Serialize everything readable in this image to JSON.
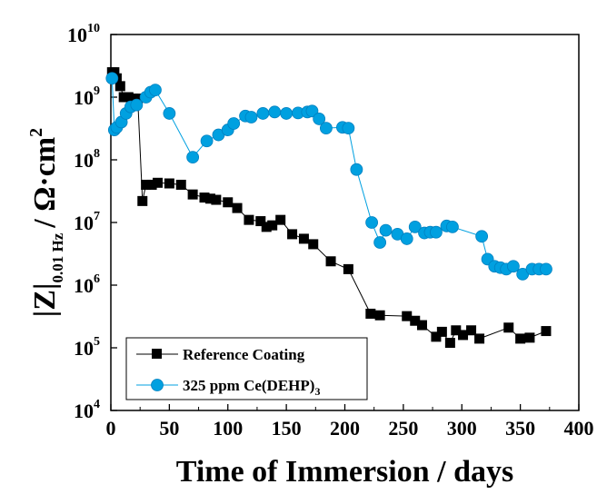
{
  "chart_data": {
    "type": "scatter",
    "xlabel": "Time of Immersion / days",
    "ylabel_main": "|Z|",
    "ylabel_sub": "0.01 Hz",
    "ylabel_unit": "/ Ω·cm",
    "ylabel_unit_sup": "2",
    "xlim": [
      0,
      400
    ],
    "ylim": [
      10000,
      10000000000
    ],
    "yscale": "log",
    "x_ticks": [
      0,
      50,
      100,
      150,
      200,
      250,
      300,
      350,
      400
    ],
    "x_tick_labels": [
      "0",
      "50",
      "100",
      "150",
      "200",
      "250",
      "300",
      "350",
      "400"
    ],
    "y_tick_exponents": [
      4,
      5,
      6,
      7,
      8,
      9,
      10
    ],
    "y_tick_labels": [
      "10",
      "10",
      "10",
      "10",
      "10",
      "10",
      "10"
    ],
    "y_tick_sups": [
      "4",
      "5",
      "6",
      "7",
      "8",
      "9",
      "10"
    ],
    "legend_position": "bottom-left",
    "series": [
      {
        "name": "Reference Coating",
        "name_sub": "",
        "color": "#000000",
        "marker": "square",
        "x": [
          1,
          3,
          5,
          8,
          11,
          15,
          19,
          23,
          27,
          30,
          35,
          40,
          50,
          60,
          70,
          80,
          85,
          90,
          100,
          108,
          118,
          128,
          133,
          138,
          145,
          155,
          165,
          173,
          188,
          203,
          222,
          230,
          253,
          260,
          266,
          278,
          283,
          290,
          295,
          301,
          308,
          315,
          340,
          350,
          358,
          372
        ],
        "y": [
          2500000000,
          2500000000,
          2000000000,
          1500000000,
          1000000000,
          1000000000,
          950000000,
          950000000,
          22000000,
          40000000,
          40000000,
          43000000,
          42000000,
          40000000,
          28000000,
          25000000,
          24000000,
          23000000,
          21000000,
          17000000,
          11000000,
          10500000,
          8500000,
          9000000,
          11000000,
          6500000,
          5500000,
          4500000,
          2400000,
          1800000,
          350000,
          330000,
          320000,
          270000,
          230000,
          150000,
          180000,
          120000,
          190000,
          160000,
          190000,
          140000,
          210000,
          140000,
          145000,
          185000
        ]
      },
      {
        "name": "325 ppm Ce(DEHP)",
        "name_sub": "3",
        "color": "#00a0e0",
        "marker": "circle",
        "x": [
          1,
          3,
          5,
          9,
          13,
          17,
          22,
          30,
          34,
          38,
          50,
          70,
          82,
          92,
          100,
          105,
          115,
          120,
          130,
          140,
          150,
          160,
          168,
          172,
          178,
          184,
          198,
          203,
          210,
          223,
          230,
          235,
          245,
          253,
          260,
          268,
          273,
          278,
          287,
          292,
          317,
          322,
          328,
          333,
          338,
          344,
          352,
          360,
          366,
          372
        ],
        "y": [
          2000000000,
          300000000,
          330000000,
          400000000,
          550000000,
          700000000,
          750000000,
          1000000000,
          1200000000,
          1300000000,
          550000000,
          110000000,
          200000000,
          250000000,
          300000000,
          380000000,
          500000000,
          480000000,
          550000000,
          580000000,
          550000000,
          560000000,
          580000000,
          600000000,
          450000000,
          320000000,
          330000000,
          320000000,
          70000000,
          10000000,
          4800000,
          7500000,
          6500000,
          5500000,
          8500000,
          6800000,
          7000000,
          7000000,
          8800000,
          8500000,
          6000000,
          2600000,
          2000000,
          1900000,
          1800000,
          2000000,
          1500000,
          1800000,
          1800000,
          1800000
        ]
      }
    ]
  }
}
